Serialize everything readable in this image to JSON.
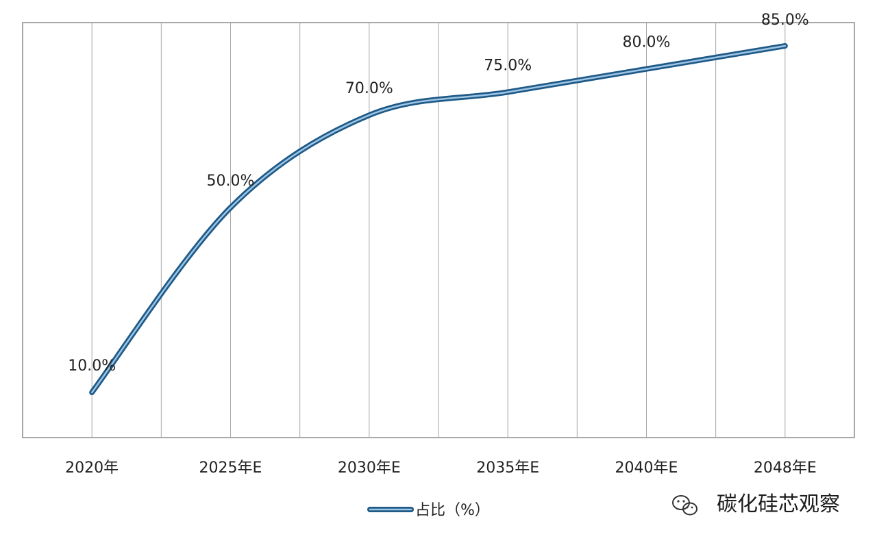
{
  "chart_data": {
    "type": "line",
    "categories": [
      "2020年",
      "2025年E",
      "2030年E",
      "2035年E",
      "2040年E",
      "2048年E"
    ],
    "series": [
      {
        "name": "占比（%）",
        "values": [
          10.0,
          50.0,
          70.0,
          75.0,
          80.0,
          85.0
        ],
        "data_labels": [
          "10.0%",
          "50.0%",
          "70.0%",
          "75.0%",
          "80.0%",
          "85.0%"
        ],
        "color": "#2a6496"
      }
    ],
    "title": "",
    "xlabel": "",
    "ylabel": "",
    "grid": "vertical",
    "legend_position": "bottom"
  },
  "watermark": {
    "text": "碳化硅芯观察",
    "icon": "wechat-icon"
  }
}
